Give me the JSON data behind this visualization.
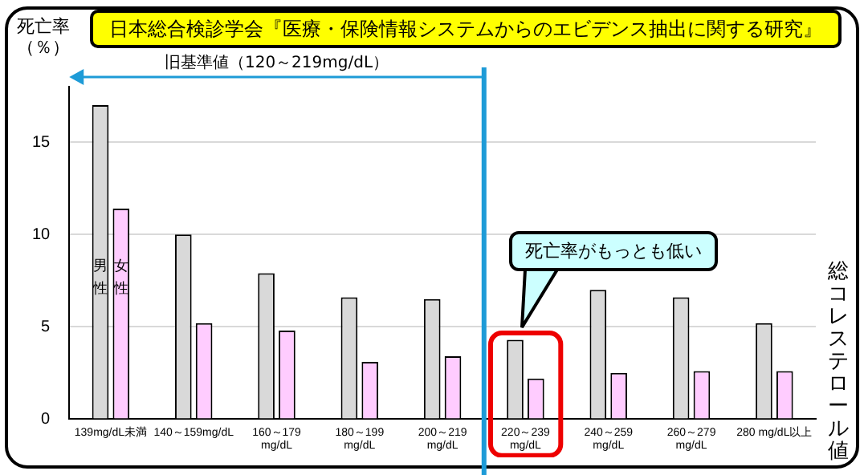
{
  "chart_data": {
    "type": "bar",
    "title": "日本総合検診学会『医療・保険情報システムからのエビデンス抽出に関する研究』",
    "ylabel": "死亡率（％）",
    "xlabel": "総コレステロール値",
    "categories": [
      "139mg/dL未満",
      "140～159mg/dL",
      "160～179\nmg/dL",
      "180～199\nmg/dL",
      "200～219\nmg/dL",
      "220～239\nmg/dL",
      "240～259\nmg/dL",
      "260～279\nmg/dL",
      "280 mg/dL以上"
    ],
    "series": [
      {
        "name": "男性",
        "color": "#d9d9d9",
        "values": [
          17.0,
          10.0,
          7.9,
          6.6,
          6.5,
          4.3,
          7.0,
          6.6,
          5.2
        ]
      },
      {
        "name": "女性",
        "color": "#ffccff",
        "values": [
          11.4,
          5.2,
          4.8,
          3.1,
          3.4,
          2.2,
          2.5,
          2.6,
          2.6
        ]
      }
    ],
    "ylim": [
      0,
      18
    ],
    "yticks": [
      0,
      5,
      10,
      15
    ],
    "grid": "y",
    "legend": false,
    "ref_lines": [
      {
        "axis": "x",
        "value": "200～219\nmg/dL",
        "color": "#1e9bd7"
      }
    ],
    "annotations": [
      "旧基準値（120～219mg/dL）",
      "死亡率がもっとも低い"
    ]
  }
}
